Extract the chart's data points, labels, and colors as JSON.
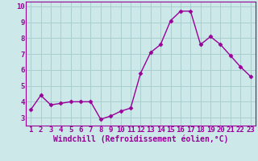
{
  "x": [
    1,
    2,
    3,
    4,
    5,
    6,
    7,
    8,
    9,
    10,
    11,
    12,
    13,
    14,
    15,
    16,
    17,
    18,
    19,
    20,
    21,
    22,
    23
  ],
  "y": [
    3.5,
    4.4,
    3.8,
    3.9,
    4.0,
    4.0,
    4.0,
    2.9,
    3.1,
    3.4,
    3.6,
    5.8,
    7.1,
    7.6,
    9.1,
    9.7,
    9.7,
    7.6,
    8.1,
    7.6,
    6.9,
    6.2,
    5.6
  ],
  "line_color": "#990099",
  "marker": "D",
  "marker_size": 2.5,
  "bg_color": "#cce8e8",
  "grid_color": "#aacece",
  "xlabel": "Windchill (Refroidissement éolien,°C)",
  "xlim_min": 0.5,
  "xlim_max": 23.5,
  "ylim_min": 2.5,
  "ylim_max": 10.3,
  "yticks": [
    3,
    4,
    5,
    6,
    7,
    8,
    9,
    10
  ],
  "xticks": [
    1,
    2,
    3,
    4,
    5,
    6,
    7,
    8,
    9,
    10,
    11,
    12,
    13,
    14,
    15,
    16,
    17,
    18,
    19,
    20,
    21,
    22,
    23
  ],
  "tick_color": "#990099",
  "axis_color": "#990099",
  "xlabel_fontsize": 7.0,
  "tick_fontsize": 6.5,
  "linewidth": 1.0
}
